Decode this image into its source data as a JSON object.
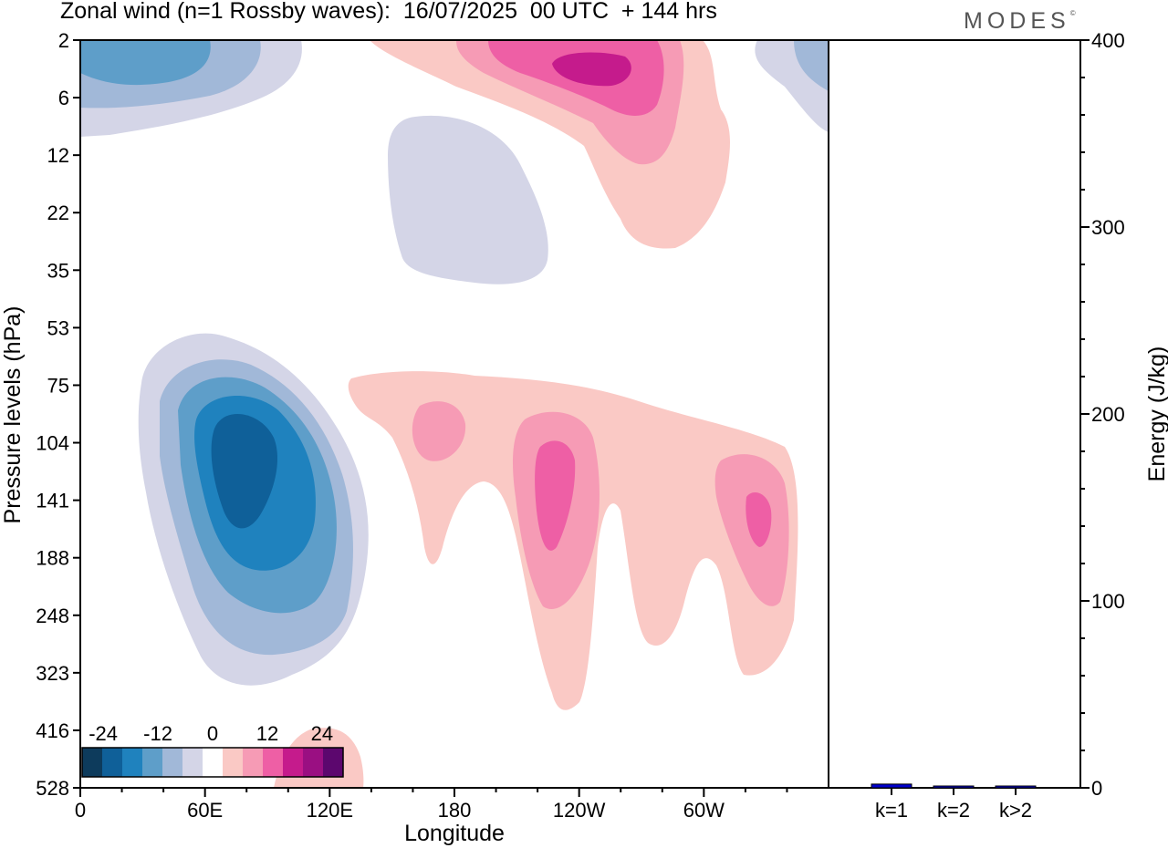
{
  "header": {
    "title": "Zonal wind (n=1 Rossby waves):  16/07/2025  00 UTC  + 144 hrs",
    "brand": "MODES",
    "brand_mark": "©"
  },
  "chart_data": [
    {
      "type": "heatmap",
      "title": "Zonal wind (n=1 Rossby waves):  16/07/2025  00 UTC  + 144 hrs",
      "xlabel": "Longitude",
      "ylabel": "Pressure levels (hPa)",
      "x_ticks": [
        "0",
        "60E",
        "120E",
        "180",
        "120W",
        "60W"
      ],
      "x_tick_values": [
        0,
        60,
        120,
        180,
        240,
        300
      ],
      "xlim": [
        0,
        360
      ],
      "y_ticks": [
        "2",
        "6",
        "12",
        "22",
        "35",
        "53",
        "75",
        "104",
        "141",
        "188",
        "248",
        "323",
        "416",
        "528"
      ],
      "y_axis": "pressure levels (hPa), evenly spaced, top = 2 hPa, bottom = 528 hPa",
      "colorbar": {
        "labels": [
          "-24",
          "-12",
          "0",
          "12",
          "24"
        ],
        "label_values": [
          -24,
          -12,
          0,
          12,
          24
        ],
        "colors": [
          "#0d3b5c",
          "#0f6099",
          "#1f82be",
          "#5e9ec9",
          "#a1b8d8",
          "#d4d5e7",
          "#ffffff",
          "#fac9c5",
          "#f69bb5",
          "#ee5fa5",
          "#c51b8c",
          "#9a0f82",
          "#5c076e"
        ],
        "placement": "bottom-left, inside plot"
      },
      "features": [
        {
          "sign": "negative",
          "peak": "about -24",
          "lon": "~80E",
          "level": "104-141 hPa"
        },
        {
          "sign": "negative",
          "peak": "about -12",
          "lon": "~20-40E",
          "level": "2-6 hPa"
        },
        {
          "sign": "negative",
          "peak": "about -4",
          "lon": "~200-220E",
          "level": "12-35 hPa"
        },
        {
          "sign": "negative",
          "peak": "about -8",
          "lon": "~355E",
          "level": "2-6 hPa"
        },
        {
          "sign": "positive",
          "peak": "about 20",
          "lon": "~250E",
          "level": "2-6 hPa"
        },
        {
          "sign": "positive",
          "peak": "about 12",
          "lon": "~230E",
          "level": "104-188 hPa"
        },
        {
          "sign": "positive",
          "peak": "about 12",
          "lon": "~325E",
          "level": "141 hPa"
        },
        {
          "sign": "positive",
          "peak": "about 8",
          "lon": "~165E",
          "level": "75-104 hPa"
        },
        {
          "sign": "positive",
          "peak": "about 4",
          "lon": "~120-135E",
          "level": "416-528 hPa"
        }
      ]
    },
    {
      "type": "bar",
      "ylabel": "Energy (J/kg)",
      "categories": [
        "k=1",
        "k=2",
        "k>2"
      ],
      "values": [
        2,
        0.5,
        0.8
      ],
      "ylim": [
        0,
        400
      ],
      "y_ticks": [
        "0",
        "100",
        "200",
        "300",
        "400"
      ],
      "bar_color": "#0000cc"
    }
  ]
}
